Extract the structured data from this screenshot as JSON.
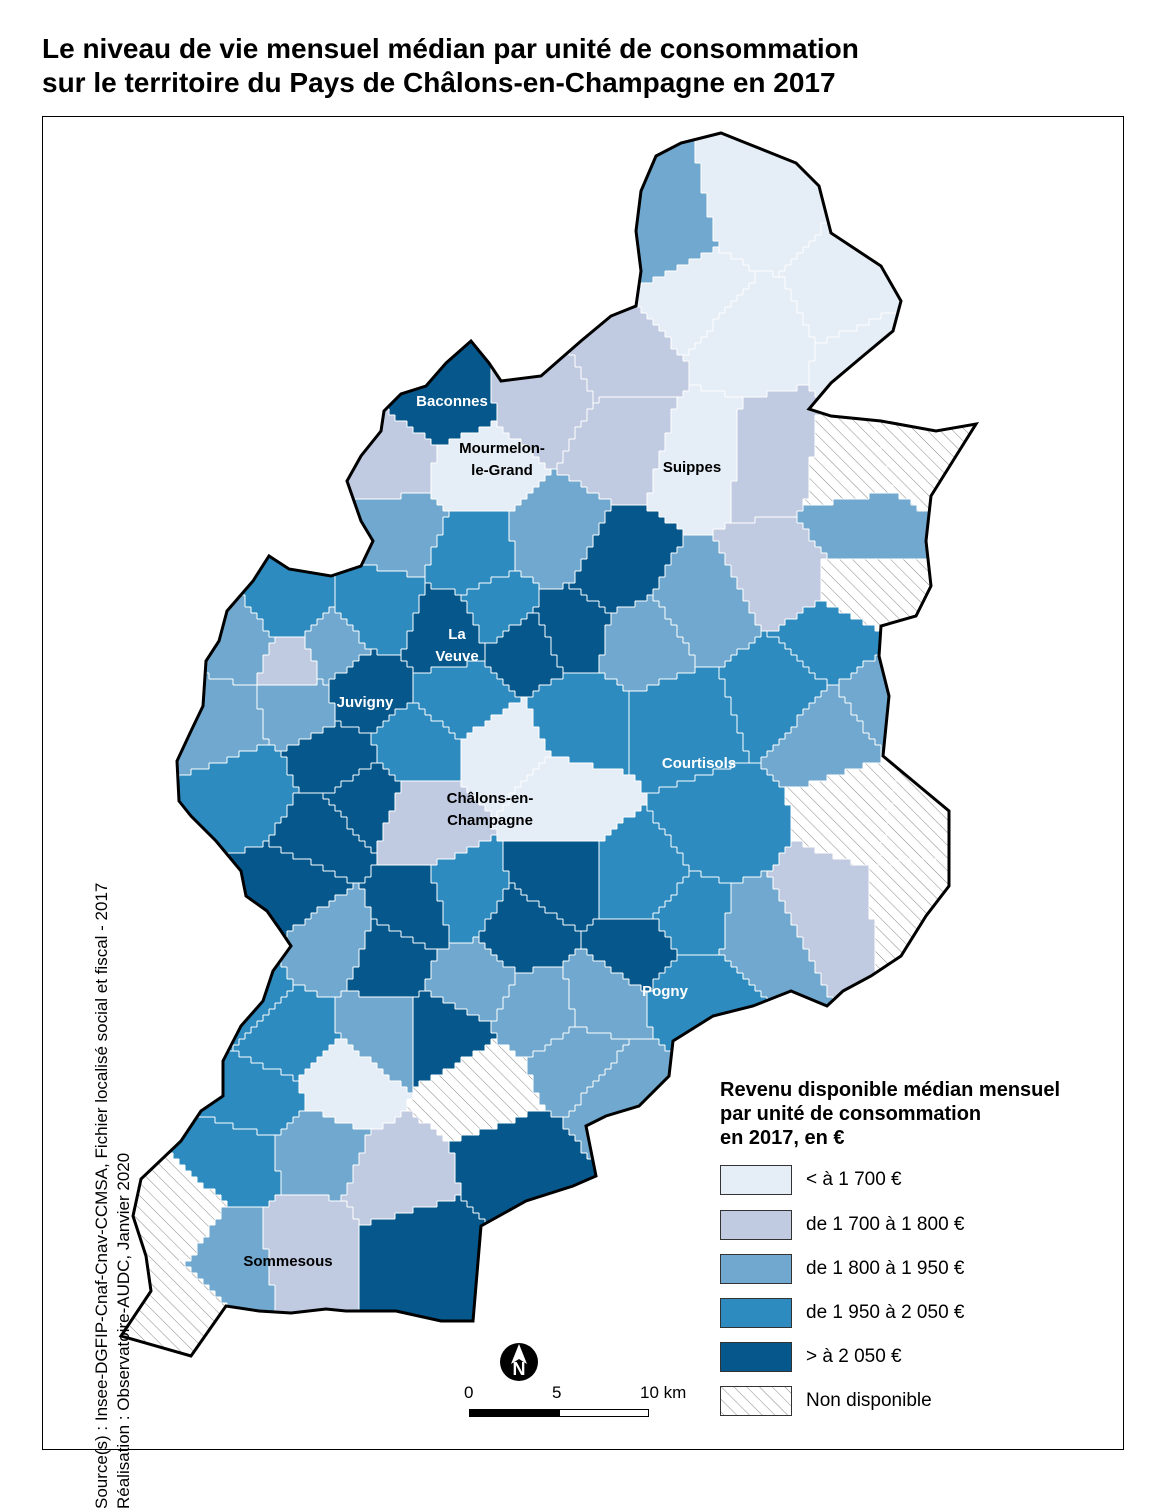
{
  "title": {
    "line1": "Le niveau de vie mensuel médian par unité de consommation",
    "line2": "sur le territoire du Pays de Châlons-en-Champagne en 2017"
  },
  "source": {
    "line1": "Source(s) : Insee-DGFIP-Cnaf-Cnav-CCMSA, Fichier localisé social et fiscal - 2017",
    "line2": "Réalisation : Observatoire-AUDC, Janvier 2020"
  },
  "legend": {
    "title_lines": [
      "Revenu disponible médian mensuel",
      "par unité de consommation",
      "en 2017, en €"
    ],
    "classes": [
      {
        "label": "< à 1 700 €",
        "color": "#e5edf7"
      },
      {
        "label": "de 1 700 à 1 800 €",
        "color": "#c0cbe2"
      },
      {
        "label": "de 1 800 à 1 950 €",
        "color": "#70a8cf"
      },
      {
        "label": "de 1 950 à 2 050 €",
        "color": "#2d8bbf"
      },
      {
        "label": "> à 2 050 €",
        "color": "#05578c"
      },
      {
        "label": "Non disponible",
        "color": "hatched"
      }
    ]
  },
  "scale_bar": {
    "labels": [
      "0",
      "5",
      "10 km"
    ]
  },
  "north_arrow": {
    "letter": "N",
    "icon": "north-arrow-icon"
  },
  "places": [
    {
      "name": [
        "Baconnes"
      ],
      "class": 4
    },
    {
      "name": [
        "Mourmelon-",
        "le-Grand"
      ],
      "class": 0
    },
    {
      "name": [
        "Suippes"
      ],
      "class": 0
    },
    {
      "name": [
        "La",
        "Veuve"
      ],
      "class": 4
    },
    {
      "name": [
        "Juvigny"
      ],
      "class": 4
    },
    {
      "name": [
        "Courtisols"
      ],
      "class": 3
    },
    {
      "name": [
        "Châlons-en-",
        "Champagne"
      ],
      "class": 0
    },
    {
      "name": [
        "Pogny"
      ],
      "class": 3
    },
    {
      "name": [
        "Sommesous"
      ],
      "class": 1
    }
  ]
}
